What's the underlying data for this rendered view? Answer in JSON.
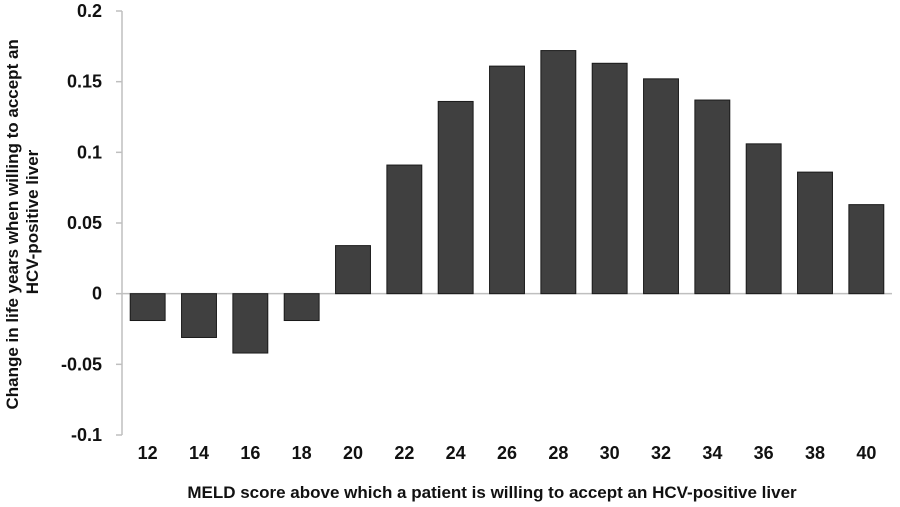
{
  "chart_data": {
    "type": "bar",
    "categories": [
      "12",
      "14",
      "16",
      "18",
      "20",
      "22",
      "24",
      "26",
      "28",
      "30",
      "32",
      "34",
      "36",
      "38",
      "40"
    ],
    "values": [
      -0.019,
      -0.031,
      -0.042,
      -0.019,
      0.034,
      0.091,
      0.136,
      0.161,
      0.172,
      0.163,
      0.152,
      0.137,
      0.106,
      0.086,
      0.063
    ],
    "title": "",
    "xlabel": "MELD score above which a patient is willing to accept an HCV-positive liver",
    "ylabel_lines": [
      "Change in life years when willing to accept an",
      "HCV-positive liver"
    ],
    "ylim": [
      -0.1,
      0.2
    ],
    "yticks": [
      "0.2",
      "0.15",
      "0.1",
      "0.05",
      "0",
      "-0.05",
      "-0.1"
    ],
    "ytick_values": [
      0.2,
      0.15,
      0.1,
      0.05,
      0,
      -0.05,
      -0.1
    ],
    "grid": false,
    "legend": "none",
    "colors": {
      "bar_fill": "#404040",
      "bar_stroke": "#1a1a1a",
      "axis": "#bfbfbf",
      "text": "#111111"
    }
  }
}
